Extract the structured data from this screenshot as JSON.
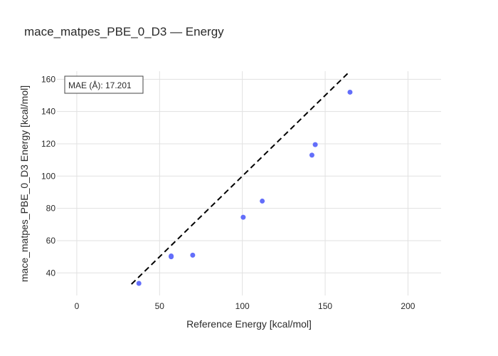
{
  "chart_data": {
    "type": "scatter",
    "title": "mace_matpes_PBE_0_D3 — Energy",
    "xlabel": "Reference Energy [kcal/mol]",
    "ylabel": "mace_matpes_PBE_0_D3 Energy [kcal/mol]",
    "xlim": [
      -12,
      220
    ],
    "ylim": [
      26,
      165
    ],
    "xticks": [
      0,
      50,
      100,
      150,
      200
    ],
    "yticks": [
      40,
      60,
      80,
      100,
      120,
      140,
      160
    ],
    "grid": true,
    "annotation": "MAE (Å): 17.201",
    "reference_line": {
      "x": [
        33,
        165
      ],
      "y": [
        33,
        165
      ],
      "style": "dashed",
      "color": "#000000"
    },
    "series": [
      {
        "color": "#636efa",
        "x": [
          37.5,
          57,
          57,
          70,
          100.5,
          112,
          142,
          144,
          165
        ],
        "y": [
          33.5,
          50,
          50.5,
          51,
          74.5,
          84.5,
          113,
          119.5,
          152
        ]
      }
    ]
  }
}
